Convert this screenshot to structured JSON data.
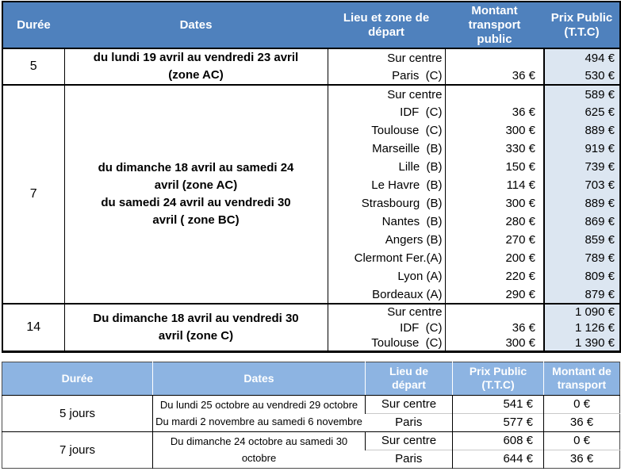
{
  "colors": {
    "header_primary": "#4f81bd",
    "header_secondary": "#8db4e2",
    "price_column_fill": "#dce6f1"
  },
  "april_table": {
    "headers": [
      "Durée",
      "Dates",
      "Lieu et zone de\ndépart",
      "Montant\ntransport\npublic",
      "Prix Public\n(T.T.C)"
    ],
    "groups": [
      {
        "duree": "5",
        "dates": [
          "du lundi 19 avril au vendredi 23 avril",
          "(zone AC)"
        ],
        "rows": [
          {
            "lieu": "Sur centre",
            "montant": "",
            "prix": "494 €"
          },
          {
            "lieu": "Paris  (C)",
            "montant": "36 €",
            "prix": "530 €"
          }
        ]
      },
      {
        "duree": "7",
        "dates": [
          "du dimanche 18 avril au samedi 24",
          "avril (zone AC)",
          "du samedi 24 avril au vendredi 30",
          "avril ( zone BC)"
        ],
        "rows": [
          {
            "lieu": "Sur centre",
            "montant": "",
            "prix": "589 €"
          },
          {
            "lieu": "IDF  (C)",
            "montant": "36 €",
            "prix": "625 €"
          },
          {
            "lieu": "Toulouse  (C)",
            "montant": "300 €",
            "prix": "889 €"
          },
          {
            "lieu": "Marseille  (B)",
            "montant": "330 €",
            "prix": "919 €"
          },
          {
            "lieu": "Lille  (B)",
            "montant": "150 €",
            "prix": "739 €"
          },
          {
            "lieu": "Le Havre  (B)",
            "montant": "114 €",
            "prix": "703 €"
          },
          {
            "lieu": "Strasbourg  (B)",
            "montant": "300 €",
            "prix": "889 €"
          },
          {
            "lieu": "Nantes  (B)",
            "montant": "280 €",
            "prix": "869 €"
          },
          {
            "lieu": "Angers (B)",
            "montant": "270 €",
            "prix": "859 €"
          },
          {
            "lieu": "Clermont Fer.(A)",
            "montant": "200 €",
            "prix": "789 €"
          },
          {
            "lieu": "Lyon (A)",
            "montant": "220 €",
            "prix": "809 €"
          },
          {
            "lieu": "Bordeaux (A)",
            "montant": "290 €",
            "prix": "879 €"
          }
        ]
      },
      {
        "duree": "14",
        "dates": [
          "Du dimanche 18 avril au vendredi 30",
          "avril (zone C)"
        ],
        "rows": [
          {
            "lieu": "Sur centre",
            "montant": "",
            "prix": "1 090 €"
          },
          {
            "lieu": "IDF  (C)",
            "montant": "36 €",
            "prix": "1 126 €"
          },
          {
            "lieu": "Toulouse  (C)",
            "montant": "300 €",
            "prix": "1 390 €"
          }
        ]
      }
    ]
  },
  "october_table": {
    "headers": [
      "Durée",
      "Dates",
      "Lieu de\ndépart",
      "Prix Public\n(T.T.C)",
      "Montant de\ntransport"
    ],
    "groups": [
      {
        "duree": "5 jours",
        "dates": [
          "Du lundi 25 octobre au vendredi 29 octobre",
          "Du mardi 2 novembre au samedi 6 novembre"
        ],
        "rows": [
          {
            "lieu": "Sur centre",
            "prix": "541 €",
            "montant": "0 €"
          },
          {
            "lieu": "Paris",
            "prix": "577 €",
            "montant": "36 €"
          }
        ]
      },
      {
        "duree": "7 jours",
        "dates": [
          "Du dimanche 24 octobre au samedi 30 octobre"
        ],
        "rows": [
          {
            "lieu": "Sur centre",
            "prix": "608 €",
            "montant": "0 €"
          },
          {
            "lieu": "Paris",
            "prix": "644 €",
            "montant": "36 €"
          }
        ]
      }
    ]
  }
}
